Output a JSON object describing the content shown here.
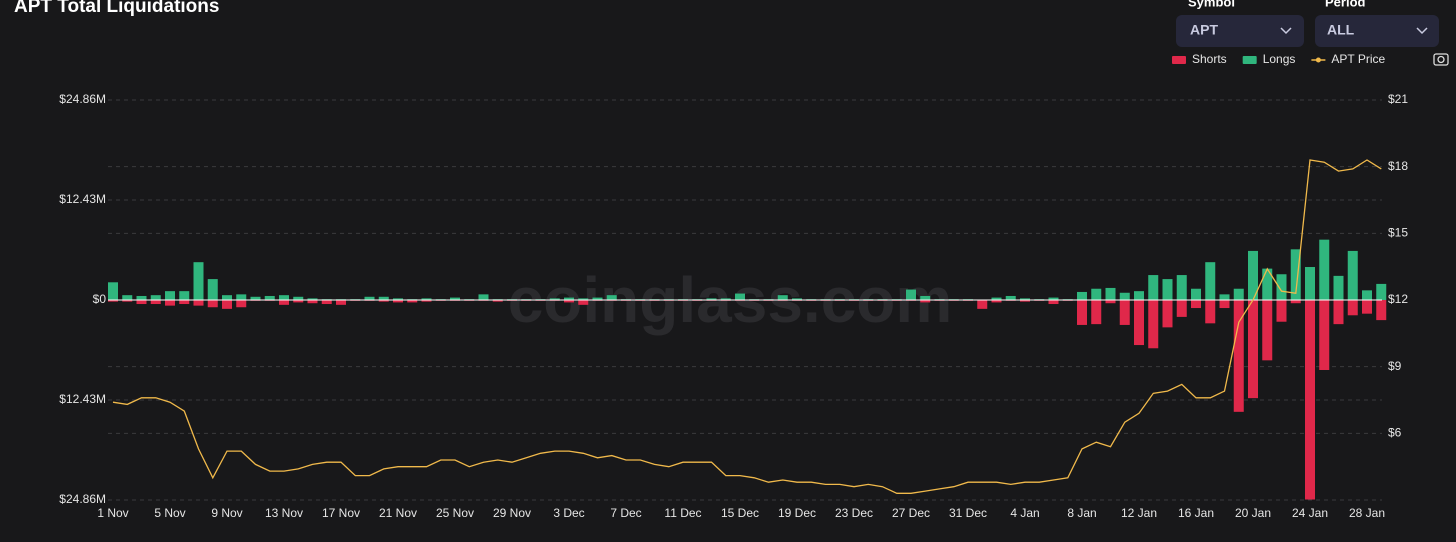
{
  "chart_data": {
    "type": "bar",
    "title": "APT Total Liquidations",
    "watermark": "coinglass.com",
    "categories": [
      "1 Nov",
      null,
      null,
      null,
      "5 Nov",
      null,
      null,
      null,
      "9 Nov",
      null,
      null,
      null,
      "13 Nov",
      null,
      null,
      null,
      "17 Nov",
      null,
      null,
      null,
      "21 Nov",
      null,
      null,
      null,
      "25 Nov",
      null,
      null,
      null,
      "29 Nov",
      null,
      null,
      null,
      "3 Dec",
      null,
      null,
      null,
      "7 Dec",
      null,
      null,
      null,
      "11 Dec",
      null,
      null,
      null,
      "15 Dec",
      null,
      null,
      null,
      "19 Dec",
      null,
      null,
      null,
      "23 Dec",
      null,
      null,
      null,
      "27 Dec",
      null,
      null,
      null,
      "31 Dec",
      null,
      null,
      null,
      "4 Jan",
      null,
      null,
      null,
      "8 Jan",
      null,
      null,
      null,
      "12 Jan",
      null,
      null,
      null,
      "16 Jan",
      null,
      null,
      null,
      "20 Jan",
      null,
      null,
      null,
      "24 Jan",
      null,
      null,
      null,
      "28 Jan",
      null
    ],
    "series": [
      {
        "name": "Shorts",
        "color": "#e0284a",
        "values": [
          -0.2,
          -0.2,
          -0.5,
          -0.5,
          -0.7,
          -0.5,
          -0.7,
          -0.9,
          -1.1,
          -0.9,
          -0.1,
          -0.1,
          -0.6,
          -0.3,
          -0.4,
          -0.5,
          -0.6,
          -0.1,
          -0.1,
          -0.2,
          -0.3,
          -0.3,
          -0.2,
          -0.1,
          -0.1,
          -0.1,
          -0.1,
          -0.2,
          -0.1,
          -0.1,
          -0.1,
          -0.1,
          -0.3,
          -0.6,
          -0.1,
          -0.1,
          -0.1,
          -0.1,
          -0.1,
          -0.1,
          -0.1,
          -0.1,
          -0.1,
          -0.1,
          -0.1,
          -0.1,
          -0.1,
          -0.1,
          -0.1,
          -0.1,
          -0.1,
          -0.1,
          -0.1,
          -0.1,
          -0.1,
          -0.1,
          -0.1,
          -0.3,
          -0.1,
          -0.1,
          -0.1,
          -1.1,
          -0.3,
          -0.1,
          -0.2,
          -0.1,
          -0.5,
          -0.1,
          -3.1,
          -3.0,
          -0.4,
          -3.1,
          -5.6,
          -6.0,
          -3.4,
          -2.1,
          -1.0,
          -2.9,
          -1.0,
          -13.9,
          -12.2,
          -7.5,
          -2.7,
          -0.4,
          -24.8,
          -8.7,
          -3.0,
          -1.9,
          -1.7,
          -2.5
        ]
      },
      {
        "name": "Longs",
        "color": "#30b67e",
        "values": [
          2.2,
          0.6,
          0.5,
          0.6,
          1.1,
          1.1,
          4.7,
          2.6,
          0.6,
          0.7,
          0.4,
          0.5,
          0.6,
          0.4,
          0.2,
          0.1,
          0.1,
          0.1,
          0.4,
          0.4,
          0.2,
          0.1,
          0.2,
          0.1,
          0.3,
          0.1,
          0.7,
          0.1,
          0.1,
          0.1,
          0.1,
          0.2,
          0.3,
          0.2,
          0.3,
          0.6,
          0.1,
          0.1,
          0.1,
          0.1,
          0.1,
          0.1,
          0.2,
          0.2,
          0.8,
          0.1,
          0.1,
          0.6,
          0.2,
          0.1,
          0.1,
          0.1,
          0.1,
          0.1,
          0.1,
          0.1,
          1.3,
          0.5,
          0.1,
          0.1,
          0.1,
          0,
          0.3,
          0.5,
          0.2,
          0.1,
          0.3,
          0.1,
          1.0,
          1.4,
          1.5,
          0.9,
          1.1,
          3.1,
          2.6,
          3.1,
          1.4,
          4.7,
          0.7,
          1.4,
          6.1,
          3.9,
          3.2,
          6.3,
          4.1,
          7.5,
          3.0,
          6.1,
          1.2,
          2.0
        ]
      },
      {
        "name": "APT Price",
        "type": "line",
        "axis": "y2",
        "color": "#f0b94b",
        "values": [
          7.4,
          7.3,
          7.6,
          7.6,
          7.4,
          7.0,
          5.3,
          4.0,
          5.2,
          5.2,
          4.6,
          4.3,
          4.3,
          4.4,
          4.6,
          4.7,
          4.7,
          4.1,
          4.1,
          4.4,
          4.5,
          4.5,
          4.5,
          4.8,
          4.8,
          4.5,
          4.7,
          4.8,
          4.7,
          4.9,
          5.1,
          5.2,
          5.2,
          5.1,
          4.9,
          5.0,
          4.8,
          4.8,
          4.6,
          4.5,
          4.7,
          4.7,
          4.7,
          4.1,
          4.1,
          4.0,
          3.8,
          3.9,
          3.8,
          3.8,
          3.7,
          3.7,
          3.6,
          3.7,
          3.6,
          3.3,
          3.3,
          3.4,
          3.5,
          3.6,
          3.8,
          3.8,
          3.8,
          3.7,
          3.8,
          3.8,
          3.9,
          4.0,
          5.3,
          5.6,
          5.4,
          6.5,
          6.9,
          7.8,
          7.9,
          8.2,
          7.6,
          7.6,
          7.9,
          11.0,
          12.0,
          13.4,
          12.4,
          12.3,
          18.3,
          18.2,
          17.8,
          17.9,
          18.3,
          17.9
        ]
      }
    ],
    "ylim": [
      -24.86,
      24.86
    ],
    "yticks": [
      {
        "value": 24.86,
        "label": "$24.86M"
      },
      {
        "value": 12.43,
        "label": "$12.43M"
      },
      {
        "value": 0,
        "label": "$0"
      },
      {
        "value": -12.43,
        "label": "$12.43M"
      },
      {
        "value": -24.86,
        "label": "$24.86M"
      }
    ],
    "y2lim": [
      3,
      21
    ],
    "y2ticks": [
      {
        "value": 21,
        "label": "$21"
      },
      {
        "value": 18,
        "label": "$18"
      },
      {
        "value": 15,
        "label": "$15"
      },
      {
        "value": 12,
        "label": "$12"
      },
      {
        "value": 9,
        "label": "$9"
      },
      {
        "value": 6,
        "label": "$6"
      }
    ],
    "grid": true
  },
  "controls": {
    "symbol": {
      "label": "Symbol",
      "value": "APT"
    },
    "period": {
      "label": "Period",
      "value": "ALL"
    }
  }
}
